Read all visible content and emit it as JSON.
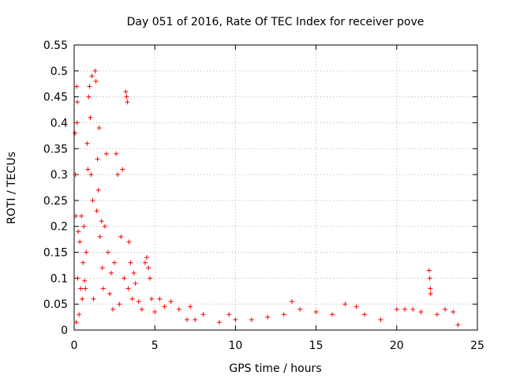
{
  "chart_data": {
    "type": "scatter",
    "title": "Day 051 of 2016, Rate Of TEC Index for receiver pove",
    "xlabel": "GPS time / hours",
    "ylabel": "ROTI / TECUs",
    "xlim": [
      0,
      25
    ],
    "ylim": [
      0,
      0.55
    ],
    "x_ticks": [
      0,
      5,
      10,
      15,
      20,
      25
    ],
    "x_tick_labels": [
      "0",
      "5",
      "10",
      "15",
      "20",
      "25"
    ],
    "y_ticks": [
      0,
      0.05,
      0.1,
      0.15,
      0.2,
      0.25,
      0.3,
      0.35,
      0.4,
      0.45,
      0.5,
      0.55
    ],
    "y_tick_labels": [
      "0",
      "0.05",
      "0.1",
      "0.15",
      "0.2",
      "0.25",
      "0.3",
      "0.35",
      "0.4",
      "0.45",
      "0.5",
      "0.55"
    ],
    "grid": true,
    "marker": "+",
    "marker_color": "#ff0000",
    "series": [
      {
        "name": "ROTI",
        "points": [
          [
            0.05,
            0.38
          ],
          [
            0.08,
            0.3
          ],
          [
            0.1,
            0.22
          ],
          [
            0.12,
            0.015
          ],
          [
            0.15,
            0.47
          ],
          [
            0.18,
            0.4
          ],
          [
            0.2,
            0.44
          ],
          [
            0.22,
            0.1
          ],
          [
            0.25,
            0.19
          ],
          [
            0.3,
            0.03
          ],
          [
            0.35,
            0.17
          ],
          [
            0.4,
            0.08
          ],
          [
            0.45,
            0.22
          ],
          [
            0.5,
            0.06
          ],
          [
            0.55,
            0.13
          ],
          [
            0.6,
            0.2
          ],
          [
            0.65,
            0.095
          ],
          [
            0.7,
            0.08
          ],
          [
            0.75,
            0.15
          ],
          [
            0.8,
            0.36
          ],
          [
            0.85,
            0.31
          ],
          [
            0.9,
            0.45
          ],
          [
            0.95,
            0.47
          ],
          [
            1.0,
            0.41
          ],
          [
            1.05,
            0.3
          ],
          [
            1.1,
            0.49
          ],
          [
            1.15,
            0.25
          ],
          [
            1.2,
            0.06
          ],
          [
            1.3,
            0.5
          ],
          [
            1.35,
            0.48
          ],
          [
            1.4,
            0.23
          ],
          [
            1.45,
            0.33
          ],
          [
            1.5,
            0.27
          ],
          [
            1.55,
            0.39
          ],
          [
            1.6,
            0.18
          ],
          [
            1.7,
            0.21
          ],
          [
            1.75,
            0.12
          ],
          [
            1.8,
            0.08
          ],
          [
            1.9,
            0.2
          ],
          [
            2.0,
            0.34
          ],
          [
            2.1,
            0.15
          ],
          [
            2.2,
            0.07
          ],
          [
            2.3,
            0.11
          ],
          [
            2.4,
            0.04
          ],
          [
            2.5,
            0.13
          ],
          [
            2.6,
            0.34
          ],
          [
            2.7,
            0.3
          ],
          [
            2.8,
            0.05
          ],
          [
            2.9,
            0.18
          ],
          [
            3.0,
            0.31
          ],
          [
            3.1,
            0.1
          ],
          [
            3.2,
            0.46
          ],
          [
            3.25,
            0.45
          ],
          [
            3.3,
            0.44
          ],
          [
            3.35,
            0.08
          ],
          [
            3.4,
            0.17
          ],
          [
            3.5,
            0.13
          ],
          [
            3.6,
            0.06
          ],
          [
            3.7,
            0.11
          ],
          [
            3.8,
            0.09
          ],
          [
            4.0,
            0.055
          ],
          [
            4.2,
            0.04
          ],
          [
            4.4,
            0.13
          ],
          [
            4.5,
            0.14
          ],
          [
            4.6,
            0.12
          ],
          [
            4.7,
            0.1
          ],
          [
            4.8,
            0.06
          ],
          [
            5.0,
            0.035
          ],
          [
            5.3,
            0.06
          ],
          [
            5.6,
            0.045
          ],
          [
            6.0,
            0.055
          ],
          [
            6.5,
            0.04
          ],
          [
            7.0,
            0.02
          ],
          [
            7.2,
            0.045
          ],
          [
            7.5,
            0.02
          ],
          [
            8.0,
            0.03
          ],
          [
            9.0,
            0.015
          ],
          [
            9.6,
            0.03
          ],
          [
            10.0,
            0.02
          ],
          [
            11.0,
            0.02
          ],
          [
            12.0,
            0.025
          ],
          [
            13.0,
            0.03
          ],
          [
            13.5,
            0.055
          ],
          [
            14.0,
            0.04
          ],
          [
            15.0,
            0.035
          ],
          [
            16.0,
            0.03
          ],
          [
            16.8,
            0.05
          ],
          [
            17.5,
            0.045
          ],
          [
            18.0,
            0.03
          ],
          [
            19.0,
            0.02
          ],
          [
            20.0,
            0.04
          ],
          [
            20.5,
            0.04
          ],
          [
            21.0,
            0.04
          ],
          [
            21.5,
            0.035
          ],
          [
            22.0,
            0.115
          ],
          [
            22.05,
            0.1
          ],
          [
            22.08,
            0.08
          ],
          [
            22.1,
            0.07
          ],
          [
            22.5,
            0.03
          ],
          [
            23.0,
            0.04
          ],
          [
            23.5,
            0.035
          ],
          [
            23.8,
            0.01
          ]
        ]
      }
    ]
  }
}
